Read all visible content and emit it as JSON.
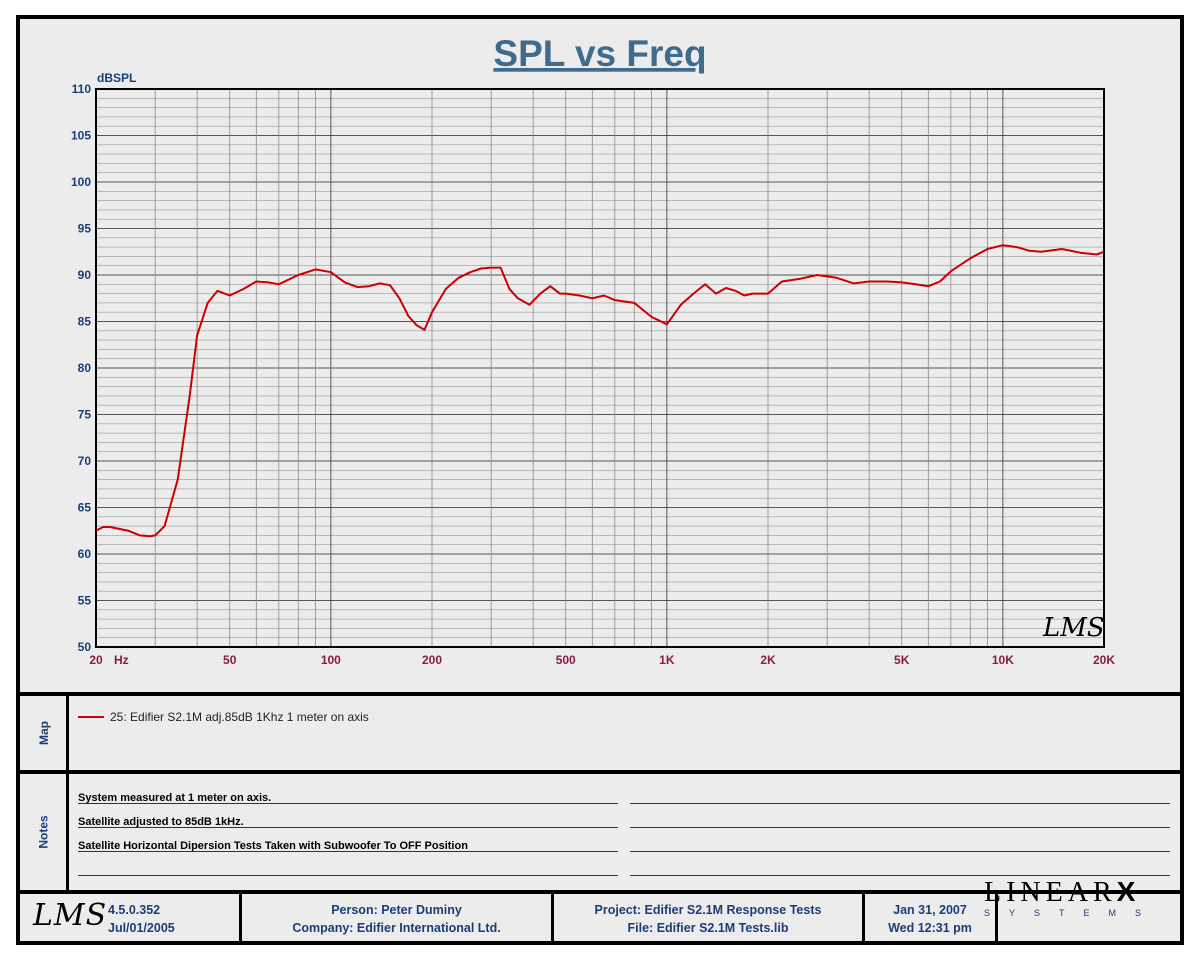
{
  "chart_data": {
    "type": "line",
    "title": "SPL vs Freq",
    "ylabel": "dBSPL",
    "xlabel": "Hz",
    "x_scale": "log",
    "xlim": [
      20,
      20000
    ],
    "ylim": [
      50,
      110
    ],
    "y_ticks": [
      50,
      55,
      60,
      65,
      70,
      75,
      80,
      85,
      90,
      95,
      100,
      105,
      110
    ],
    "x_tick_values": [
      20,
      50,
      100,
      200,
      500,
      1000,
      2000,
      5000,
      10000,
      20000
    ],
    "x_tick_labels": [
      "20",
      "50",
      "100",
      "200",
      "500",
      "1K",
      "2K",
      "5K",
      "10K",
      "20K"
    ],
    "grid": true,
    "series": [
      {
        "name": "25: Edifier S2.1M adj.85dB 1Khz 1 meter on axis",
        "color": "#cc0000",
        "x": [
          20,
          21,
          22,
          25,
          27,
          29,
          30,
          32,
          35,
          38,
          40,
          43,
          46,
          50,
          55,
          60,
          65,
          70,
          80,
          90,
          100,
          110,
          120,
          130,
          140,
          150,
          160,
          170,
          180,
          190,
          200,
          220,
          240,
          260,
          280,
          300,
          320,
          340,
          360,
          390,
          420,
          450,
          480,
          500,
          550,
          600,
          650,
          700,
          800,
          900,
          1000,
          1100,
          1200,
          1300,
          1400,
          1500,
          1600,
          1700,
          1800,
          2000,
          2200,
          2500,
          2800,
          3200,
          3600,
          4000,
          4500,
          5000,
          5500,
          6000,
          6500,
          7000,
          8000,
          9000,
          10000,
          11000,
          12000,
          13000,
          15000,
          17000,
          19000,
          20000
        ],
        "y": [
          62.5,
          62.9,
          62.9,
          62.5,
          62.0,
          61.9,
          62.0,
          63.0,
          68.0,
          77.0,
          83.5,
          87.0,
          88.3,
          87.8,
          88.5,
          89.3,
          89.2,
          89.0,
          90.0,
          90.6,
          90.3,
          89.2,
          88.7,
          88.8,
          89.1,
          88.9,
          87.5,
          85.6,
          84.6,
          84.1,
          86.0,
          88.5,
          89.7,
          90.3,
          90.7,
          90.8,
          90.8,
          88.5,
          87.5,
          86.8,
          88.0,
          88.8,
          88.0,
          88.0,
          87.8,
          87.5,
          87.8,
          87.3,
          87.0,
          85.5,
          84.7,
          86.8,
          88.0,
          89.0,
          88.0,
          88.6,
          88.3,
          87.8,
          88.0,
          88.0,
          89.3,
          89.6,
          90.0,
          89.7,
          89.1,
          89.3,
          89.3,
          89.2,
          89.0,
          88.8,
          89.3,
          90.4,
          91.8,
          92.8,
          93.2,
          93.0,
          92.6,
          92.5,
          92.8,
          92.4,
          92.2,
          92.5
        ]
      }
    ]
  },
  "map_panel": {
    "label": "Map"
  },
  "notes_panel": {
    "label": "Notes",
    "lines": [
      "System measured at 1 meter on axis.",
      "Satellite adjusted to 85dB 1kHz.",
      "Satellite Horizontal Dipersion Tests Taken with Subwoofer To OFF Position"
    ]
  },
  "watermark": "LMS",
  "footer": {
    "version": "4.5.0.352",
    "version_date": "Jul/01/2005",
    "person": "Person: Peter Duminy",
    "company": "Company: Edifier International Ltd.",
    "project": "Project: Edifier S2.1M Response Tests",
    "file": "File: Edifier S2.1M Tests.lib",
    "date": "Jan 31, 2007",
    "time": "Wed 12:31 pm",
    "brand_main": "LINEAR",
    "brand_x": "X",
    "brand_sub": "SYSTEMS"
  },
  "colors": {
    "title": "#3f6b8c",
    "axis_y_labels": "#1a3d7a",
    "axis_x_labels": "#8a1a4a",
    "curve": "#cc0000"
  }
}
